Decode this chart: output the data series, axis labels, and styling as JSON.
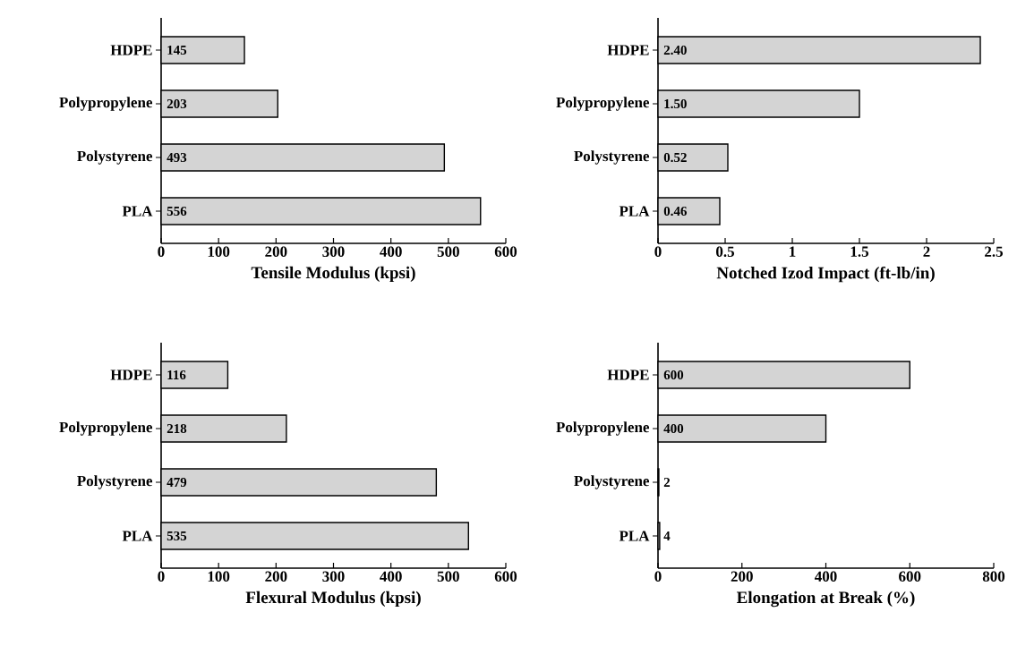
{
  "chart_data": [
    {
      "type": "bar",
      "orientation": "horizontal",
      "categories": [
        "HDPE",
        "Polypropylene",
        "Polystyrene",
        "PLA"
      ],
      "values": [
        145,
        203,
        493,
        556
      ],
      "data_labels": true,
      "color": "#d4d4d4",
      "xlim": [
        0,
        600
      ],
      "xticks": [
        0,
        100,
        200,
        300,
        400,
        500,
        600
      ],
      "xlabel": "Tensile Modulus (kpsi)"
    },
    {
      "type": "bar",
      "orientation": "horizontal",
      "categories": [
        "HDPE",
        "Polypropylene",
        "Polystyrene",
        "PLA"
      ],
      "values": [
        2.4,
        1.5,
        0.52,
        0.46
      ],
      "value_labels": [
        "2.40",
        "1.50",
        "0.52",
        "0.46"
      ],
      "color": "#d4d4d4",
      "xlim": [
        0,
        2.5
      ],
      "xticks": [
        0,
        0.5,
        1,
        1.5,
        2,
        2.5
      ],
      "xlabel": "Notched Izod Impact (ft-lb/in)"
    },
    {
      "type": "bar",
      "orientation": "horizontal",
      "categories": [
        "HDPE",
        "Polypropylene",
        "Polystyrene",
        "PLA"
      ],
      "values": [
        116,
        218,
        479,
        535
      ],
      "data_labels": true,
      "color": "#d4d4d4",
      "xlim": [
        0,
        600
      ],
      "xticks": [
        0,
        100,
        200,
        300,
        400,
        500,
        600
      ],
      "xlabel": "Flexural Modulus (kpsi)"
    },
    {
      "type": "bar",
      "orientation": "horizontal",
      "categories": [
        "HDPE",
        "Polypropylene",
        "Polystyrene",
        "PLA"
      ],
      "values": [
        600,
        400,
        2,
        4
      ],
      "data_labels": true,
      "color": "#d4d4d4",
      "xlim": [
        0,
        800
      ],
      "xticks": [
        0,
        200,
        400,
        600,
        800
      ],
      "xlabel": "Elongation at Break (%)"
    }
  ]
}
